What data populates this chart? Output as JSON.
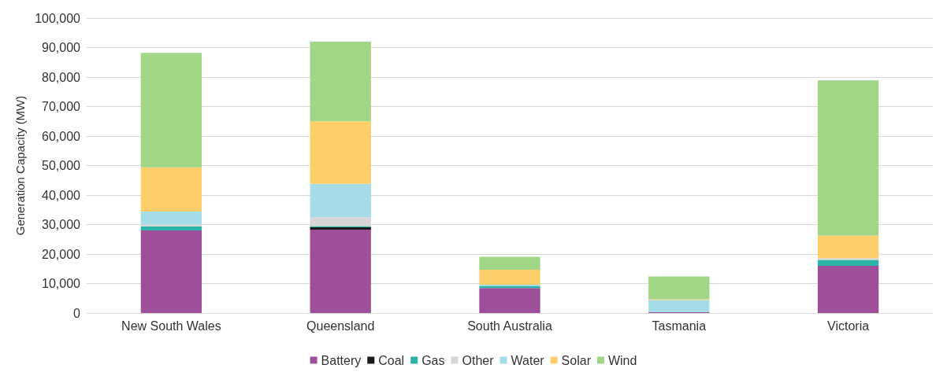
{
  "chart_data": {
    "type": "bar",
    "stacked": true,
    "ylabel": "Generation Capacity (MW)",
    "categories": [
      "New South Wales",
      "Queensland",
      "South Australia",
      "Tasmania",
      "Victoria"
    ],
    "series": [
      {
        "name": "Battery",
        "color": "#9e4f9a",
        "values": [
          28000,
          28300,
          8500,
          300,
          16000
        ]
      },
      {
        "name": "Coal",
        "color": "#1a1a1a",
        "values": [
          0,
          800,
          0,
          0,
          0
        ]
      },
      {
        "name": "Gas",
        "color": "#2ab5a6",
        "values": [
          1400,
          400,
          600,
          0,
          2000
        ]
      },
      {
        "name": "Other",
        "color": "#d6d6d6",
        "values": [
          600,
          3000,
          0,
          0,
          600
        ]
      },
      {
        "name": "Water",
        "color": "#a6dbe8",
        "values": [
          4400,
          11300,
          500,
          4100,
          0
        ]
      },
      {
        "name": "Solar",
        "color": "#fccf6b",
        "values": [
          15000,
          21200,
          5100,
          300,
          7700
        ]
      },
      {
        "name": "Wind",
        "color": "#a1d687",
        "values": [
          38800,
          27000,
          4400,
          7700,
          52600
        ]
      }
    ],
    "ylim": [
      0,
      100000
    ],
    "yticks": [
      0,
      {
        "value": 10000,
        "label": "10,000"
      },
      {
        "value": 20000,
        "label": "20,000"
      },
      {
        "value": 30000,
        "label": "30,000"
      },
      {
        "value": 40000,
        "label": "40,000"
      },
      {
        "value": 50000,
        "label": "50,000"
      },
      {
        "value": 60000,
        "label": "60,000"
      },
      {
        "value": 70000,
        "label": "70,000"
      },
      {
        "value": 80000,
        "label": "80,000"
      },
      {
        "value": 90000,
        "label": "90,000"
      },
      {
        "value": 100000,
        "label": "100,000"
      }
    ],
    "grid": "y",
    "legend": "bottom"
  }
}
